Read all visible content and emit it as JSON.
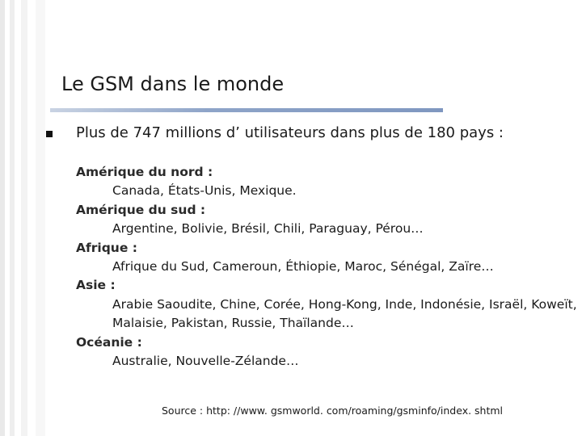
{
  "slide": {
    "title": "Le GSM dans le monde",
    "main_point": "Plus de 747 millions d’ utilisateurs dans plus de 180 pays :",
    "regions": [
      {
        "name": "Amérique du nord :",
        "countries": "Canada, États-Unis, Mexique."
      },
      {
        "name": "Amérique du sud :",
        "countries": "Argentine, Bolivie, Brésil, Chili, Paraguay, Pérou…"
      },
      {
        "name": "Afrique :",
        "countries": "Afrique du Sud, Cameroun, Éthiopie, Maroc, Sénégal, Zaïre…"
      },
      {
        "name": "Asie :",
        "countries": "Arabie Saoudite, Chine, Corée, Hong-Kong, Inde, Indonésie, Israël, Koweït, Malaisie, Pakistan, Russie, Thaïlande…"
      },
      {
        "name": "Océanie :",
        "countries": "Australie, Nouvelle-Zélande…"
      }
    ],
    "source": "Source : http: //www. gsmworld. com/roaming/gsminfo/index. shtml"
  },
  "colors": {
    "title_rule": "#8ea4c8",
    "text": "#1a1a1a",
    "background": "#ffffff"
  },
  "icons": {
    "bullet": "square-bullet-icon"
  }
}
